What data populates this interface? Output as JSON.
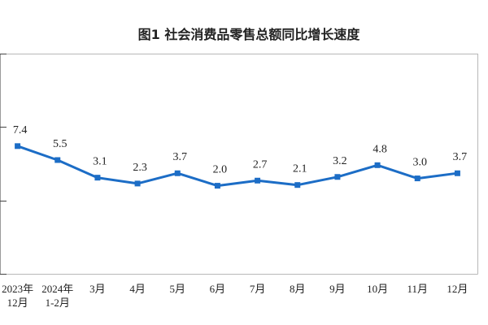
{
  "chart_data": {
    "type": "line",
    "title": "图1 社会消费品零售总额同比增长速度",
    "categories": [
      "2023年\n12月",
      "2024年\n1-2月",
      "3月",
      "4月",
      "5月",
      "6月",
      "7月",
      "8月",
      "9月",
      "10月",
      "11月",
      "12月"
    ],
    "series": [
      {
        "values": [
          7.4,
          5.5,
          3.1,
          2.3,
          3.7,
          2.0,
          2.7,
          2.1,
          3.2,
          4.8,
          3.0,
          3.7
        ],
        "color": "#1c6dc6"
      }
    ],
    "xlabel": "",
    "ylabel": "",
    "ylim": [
      -10,
      20
    ],
    "yticks": [
      -10,
      0,
      10,
      20
    ],
    "grid": false,
    "legend": false
  }
}
